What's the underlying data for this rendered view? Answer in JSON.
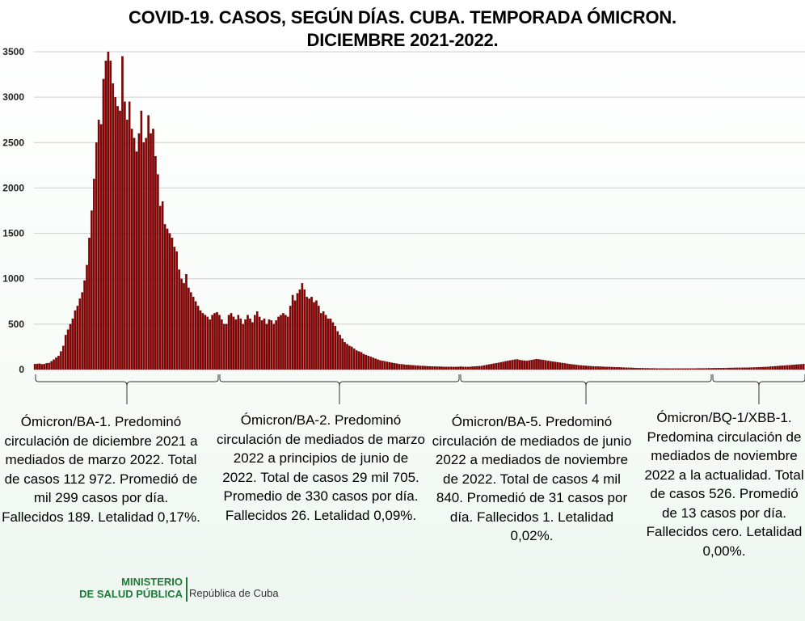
{
  "title": {
    "line1": "COVID-19. CASOS, SEGÚN DÍAS. CUBA. TEMPORADA ÓMICRON.",
    "line2": "DICIEMBRE 2021-2022."
  },
  "chart_data": {
    "type": "bar",
    "title": "COVID-19. CASOS, SEGÚN DÍAS. CUBA. TEMPORADA ÓMICRON. DICIEMBRE 2021-2022.",
    "ylim": [
      0,
      3500
    ],
    "yticks": [
      0,
      500,
      1000,
      1500,
      2000,
      2500,
      3000,
      3500
    ],
    "ytick_labels": [
      "0",
      "500",
      "1000",
      "1500",
      "2000",
      "2500",
      "3000",
      "3500"
    ],
    "grid": true,
    "bar_color": "#8b0000",
    "approx_daily_cases": [
      60,
      62,
      65,
      58,
      60,
      70,
      72,
      90,
      110,
      130,
      150,
      200,
      260,
      380,
      440,
      500,
      560,
      650,
      700,
      780,
      850,
      980,
      1150,
      1450,
      1750,
      2100,
      2500,
      2750,
      2700,
      3200,
      3400,
      3500,
      3400,
      3150,
      3000,
      2900,
      2850,
      3450,
      2950,
      2750,
      2950,
      2650,
      2550,
      2400,
      2600,
      2850,
      2500,
      2550,
      2800,
      2600,
      2650,
      2350,
      2150,
      1800,
      1850,
      1600,
      1550,
      1500,
      1450,
      1350,
      1300,
      1100,
      1000,
      950,
      1050,
      900,
      850,
      800,
      750,
      700,
      650,
      620,
      600,
      580,
      550,
      600,
      620,
      630,
      600,
      550,
      500,
      500,
      600,
      620,
      580,
      550,
      600,
      560,
      500,
      550,
      600,
      560,
      520,
      600,
      640,
      580,
      540,
      560,
      500,
      550,
      540,
      500,
      540,
      580,
      600,
      620,
      600,
      580,
      700,
      820,
      760,
      840,
      880,
      950,
      880,
      800,
      780,
      800,
      740,
      760,
      700,
      620,
      640,
      600,
      560,
      560,
      520,
      480,
      420,
      380,
      340,
      300,
      280,
      260,
      250,
      230,
      210,
      200,
      190,
      170,
      160,
      150,
      140,
      130,
      120,
      110,
      100,
      95,
      90,
      85,
      80,
      75,
      70,
      65,
      60,
      58,
      55,
      52,
      50,
      48,
      46,
      44,
      42,
      40,
      40,
      38,
      36,
      35,
      34,
      33,
      32,
      32,
      31,
      30,
      30,
      30,
      30,
      28,
      28,
      30,
      32,
      30,
      30,
      28,
      30,
      32,
      34,
      36,
      38,
      40,
      45,
      50,
      55,
      60,
      65,
      70,
      75,
      80,
      85,
      90,
      95,
      100,
      105,
      110,
      112,
      105,
      100,
      98,
      95,
      100,
      105,
      110,
      115,
      112,
      108,
      104,
      100,
      96,
      92,
      88,
      84,
      80,
      76,
      72,
      68,
      64,
      60,
      57,
      54,
      51,
      48,
      45,
      43,
      41,
      39,
      37,
      35,
      34,
      33,
      32,
      31,
      30,
      29,
      28,
      27,
      26,
      25,
      24,
      23,
      22,
      21,
      20,
      19,
      18,
      17,
      16,
      15,
      15,
      14,
      14,
      13,
      13,
      13,
      12,
      12,
      12,
      12,
      12,
      11,
      11,
      11,
      11,
      11,
      11,
      11,
      11,
      12,
      12,
      12,
      12,
      13,
      13,
      13,
      13,
      14,
      14,
      14,
      15,
      15,
      16,
      16,
      17,
      17,
      18,
      18,
      18,
      19,
      19,
      20,
      20,
      21,
      21,
      22,
      22,
      23,
      24,
      25,
      26,
      27,
      28,
      30,
      32,
      34,
      36,
      38,
      40,
      42,
      44,
      46,
      48,
      50,
      52,
      54,
      56,
      58,
      60
    ]
  },
  "periods": [
    {
      "text": "Ómicron/BA-1. Predominó circulación de diciembre 2021 a mediados de marzo 2022. Total de casos 112 972. Promedió de mil 299 casos por día. Fallecidos 189. Letalidad  0,17%."
    },
    {
      "text": "Ómicron/BA-2. Predominó circulación de mediados de marzo 2022 a principios de junio de 2022. Total de casos 29 mil 705. Promedio de 330 casos por día. Fallecidos 26. Letalidad  0,09%."
    },
    {
      "text": "Ómicron/BA-5. Predominó circulación de mediados de junio 2022 a mediados de noviembre de 2022. Total de casos 4 mil 840. Promedió de 31 casos por día. Fallecidos 1. Letalidad 0,02%."
    },
    {
      "text": "Ómicron/BQ-1/XBB-1. Predomina circulación de mediados de noviembre 2022 a la actualidad. Total de casos 526. Promedió de 13 casos por día. Fallecidos cero. Letalidad  0,00%."
    }
  ],
  "logo": {
    "ministry_line1": "MINISTERIO",
    "ministry_line2": "DE SALUD PÚBLICA",
    "republic": "República de Cuba"
  },
  "colors": {
    "bar": "#8b0000",
    "grid": "#cfcfcf",
    "brand_green": "#1f7a3a"
  }
}
